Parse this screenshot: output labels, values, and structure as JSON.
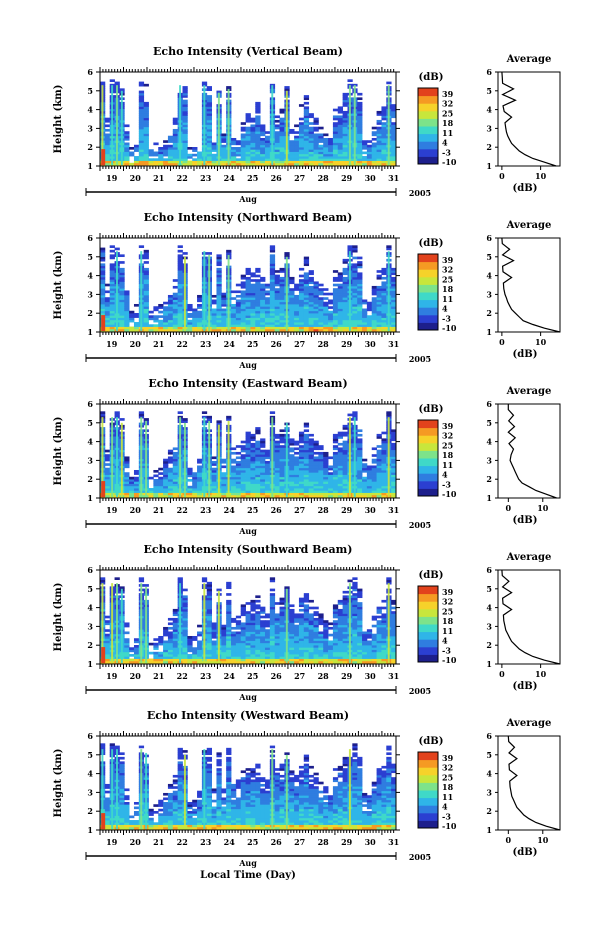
{
  "figure": {
    "xlabel": "Local Time (Day)",
    "month_label": "Aug",
    "year_label": "2005",
    "colorbar_unit": "(dB)",
    "colorbar_ticks": [
      "39",
      "32",
      "25",
      "18",
      "11",
      "4",
      "-3",
      "-10"
    ],
    "avg_title": "Average",
    "avg_xlabel": "(dB)",
    "avg_xticks": [
      "0",
      "10"
    ],
    "height_ticks": [
      "1",
      "2",
      "3",
      "4",
      "5",
      "6"
    ],
    "day_ticks": [
      "19",
      "20",
      "21",
      "22",
      "23",
      "24",
      "25",
      "26",
      "27",
      "28",
      "29",
      "30",
      "31"
    ],
    "colors": {
      "colormap": [
        "#1d1f8c",
        "#2b3fd1",
        "#2f7de0",
        "#2fb5e8",
        "#3fd9c8",
        "#7de38a",
        "#c8e63c",
        "#f6d22a",
        "#f59a23",
        "#e2421c"
      ],
      "axis": "#000000",
      "background": "#ffffff"
    }
  },
  "chart_data": [
    {
      "type": "heatmap",
      "title": "Echo Intensity (Vertical Beam)",
      "ylabel": "Height (km)",
      "xlim": [
        19,
        31.6
      ],
      "ylim": [
        1,
        6
      ],
      "clim": [
        -10,
        39
      ],
      "echo_top_km": [
        5.5,
        3.5,
        5.5,
        5.5,
        5.2,
        3.1,
        2.0,
        2.3,
        5.5,
        5.3,
        2.0,
        2.2,
        2.1,
        2.3,
        2.8,
        3.5,
        5.5,
        5.2,
        2.0,
        2.0,
        2.6,
        5.5,
        5.3,
        2.5,
        5.1,
        2.8,
        5.3,
        2.4,
        2.3,
        3.3,
        3.8,
        3.8,
        4.3,
        3.2,
        2.8,
        5.5,
        3.7,
        4.0,
        5.2,
        3.2,
        3.2,
        4.2,
        5.0,
        3.8,
        3.5,
        3.0,
        2.8,
        2.6,
        4.0,
        4.1,
        4.8,
        5.5,
        5.5,
        5.0,
        2.3,
        2.3,
        3.0,
        3.9,
        4.2,
        5.5,
        4.2
      ],
      "average_profile": {
        "height_km": [
          1.0,
          1.2,
          1.4,
          1.6,
          1.8,
          2.0,
          2.2,
          2.4,
          2.6,
          2.8,
          3.0,
          3.3,
          3.6,
          3.9,
          4.2,
          4.5,
          4.8,
          5.1,
          5.4,
          5.7,
          6.0
        ],
        "value_db": [
          14,
          11,
          8,
          6,
          4.5,
          3.5,
          2.5,
          2.0,
          1.5,
          1.2,
          1.0,
          0.8,
          2.5,
          0.6,
          0.3,
          3.5,
          0.2,
          3.0,
          0.2,
          0.1,
          0.0
        ],
        "xlim": [
          -1,
          15
        ]
      }
    },
    {
      "type": "heatmap",
      "title": "Echo Intensity (Northward Beam)",
      "ylabel": "Height (km)",
      "xlim": [
        19,
        31.6
      ],
      "ylim": [
        1,
        6
      ],
      "clim": [
        -10,
        39
      ],
      "echo_top_km": [
        5.5,
        3.5,
        5.5,
        5.5,
        5.2,
        3.2,
        2.1,
        2.4,
        5.5,
        5.3,
        2.1,
        2.3,
        2.4,
        2.8,
        3.3,
        3.8,
        5.5,
        5.2,
        2.4,
        2.4,
        3.0,
        5.5,
        5.3,
        3.0,
        5.1,
        3.0,
        5.3,
        3.3,
        3.5,
        4.0,
        4.3,
        4.2,
        4.5,
        4.0,
        3.5,
        5.5,
        4.2,
        4.4,
        5.2,
        4.0,
        3.8,
        4.4,
        5.0,
        4.2,
        3.9,
        3.5,
        3.3,
        3.0,
        4.2,
        4.4,
        4.8,
        5.5,
        5.5,
        5.0,
        2.8,
        2.7,
        3.4,
        4.2,
        4.4,
        5.5,
        4.5
      ],
      "average_profile": {
        "height_km": [
          1.0,
          1.2,
          1.4,
          1.6,
          1.8,
          2.0,
          2.2,
          2.4,
          2.6,
          2.8,
          3.0,
          3.3,
          3.6,
          3.9,
          4.2,
          4.5,
          4.8,
          5.1,
          5.4,
          5.7,
          6.0
        ],
        "value_db": [
          15,
          11,
          8,
          5.5,
          4.5,
          3.5,
          2.5,
          2.0,
          1.5,
          1.2,
          0.8,
          0.5,
          0.4,
          2.5,
          0.3,
          0.2,
          3.0,
          0.2,
          2.0,
          0.1,
          0.0
        ],
        "xlim": [
          -1,
          15
        ]
      }
    },
    {
      "type": "heatmap",
      "title": "Echo Intensity (Eastward Beam)",
      "ylabel": "Height (km)",
      "xlim": [
        19,
        31.6
      ],
      "ylim": [
        1,
        6
      ],
      "clim": [
        -10,
        39
      ],
      "echo_top_km": [
        5.5,
        3.5,
        5.5,
        5.5,
        5.2,
        3.2,
        2.1,
        2.4,
        5.5,
        5.3,
        2.2,
        2.4,
        2.6,
        3.0,
        3.5,
        4.0,
        5.5,
        5.2,
        2.5,
        2.6,
        3.2,
        5.5,
        5.3,
        3.2,
        5.1,
        3.2,
        5.3,
        3.6,
        3.7,
        4.2,
        4.5,
        4.4,
        4.7,
        4.1,
        3.7,
        5.5,
        4.3,
        4.6,
        5.2,
        4.2,
        4.0,
        4.6,
        5.0,
        4.4,
        4.0,
        3.7,
        3.4,
        3.2,
        4.3,
        4.5,
        4.8,
        5.5,
        5.5,
        5.0,
        3.0,
        2.9,
        3.6,
        4.3,
        4.5,
        5.5,
        4.6
      ],
      "average_profile": {
        "height_km": [
          1.0,
          1.2,
          1.4,
          1.6,
          1.8,
          2.0,
          2.2,
          2.4,
          2.6,
          2.8,
          3.0,
          3.3,
          3.6,
          3.9,
          4.2,
          4.5,
          4.8,
          5.1,
          5.4,
          5.7,
          6.0
        ],
        "value_db": [
          14,
          11,
          8,
          6,
          4,
          3,
          2.5,
          2.0,
          1.5,
          1.0,
          0.5,
          0.8,
          1.5,
          0.2,
          2.0,
          0.0,
          1.8,
          0.1,
          1.5,
          0.0,
          0.0
        ],
        "xlim": [
          -3,
          15
        ]
      }
    },
    {
      "type": "heatmap",
      "title": "Echo Intensity (Southward Beam)",
      "ylabel": "Height (km)",
      "xlim": [
        19,
        31.6
      ],
      "ylim": [
        1,
        6
      ],
      "clim": [
        -10,
        39
      ],
      "echo_top_km": [
        5.5,
        3.5,
        5.5,
        5.5,
        5.2,
        3.2,
        2.1,
        2.4,
        5.5,
        5.3,
        2.1,
        2.3,
        2.5,
        2.9,
        3.4,
        3.9,
        5.5,
        5.2,
        2.4,
        2.5,
        3.1,
        5.5,
        5.3,
        3.1,
        5.1,
        3.1,
        5.3,
        3.5,
        3.6,
        4.1,
        4.4,
        4.3,
        4.6,
        4.0,
        3.6,
        5.5,
        4.3,
        4.5,
        5.2,
        4.1,
        3.9,
        4.5,
        5.0,
        4.3,
        4.0,
        3.6,
        3.3,
        3.1,
        4.2,
        4.4,
        4.8,
        5.5,
        5.5,
        5.0,
        2.9,
        2.8,
        3.5,
        4.2,
        4.4,
        5.5,
        4.5
      ],
      "average_profile": {
        "height_km": [
          1.0,
          1.2,
          1.4,
          1.6,
          1.8,
          2.0,
          2.2,
          2.4,
          2.6,
          2.8,
          3.0,
          3.3,
          3.6,
          3.9,
          4.2,
          4.5,
          4.8,
          5.1,
          5.4,
          5.7,
          6.0
        ],
        "value_db": [
          15,
          11,
          8,
          6,
          4.5,
          3.5,
          2.5,
          2.0,
          1.5,
          1.0,
          0.8,
          0.5,
          0.4,
          2.5,
          0.3,
          0.2,
          2.5,
          0.2,
          1.8,
          0.1,
          0.0
        ],
        "xlim": [
          -1,
          15
        ]
      }
    },
    {
      "type": "heatmap",
      "title": "Echo Intensity (Westward Beam)",
      "ylabel": "Height (km)",
      "xlim": [
        19,
        31.6
      ],
      "ylim": [
        1,
        6
      ],
      "clim": [
        -10,
        39
      ],
      "echo_top_km": [
        5.5,
        3.5,
        5.5,
        5.5,
        5.2,
        3.2,
        2.1,
        2.4,
        5.5,
        5.3,
        2.1,
        2.3,
        2.5,
        2.9,
        3.4,
        3.9,
        5.5,
        5.2,
        2.4,
        2.5,
        3.1,
        5.5,
        5.3,
        3.1,
        5.1,
        3.1,
        5.3,
        3.5,
        3.6,
        4.1,
        4.4,
        4.3,
        4.6,
        4.0,
        3.6,
        5.5,
        4.3,
        4.5,
        5.2,
        4.1,
        3.9,
        4.5,
        5.0,
        4.3,
        4.0,
        3.6,
        3.3,
        3.1,
        4.2,
        4.4,
        4.8,
        5.5,
        5.5,
        5.0,
        2.9,
        2.8,
        3.5,
        4.2,
        4.4,
        5.5,
        4.5
      ],
      "average_profile": {
        "height_km": [
          1.0,
          1.2,
          1.4,
          1.6,
          1.8,
          2.0,
          2.2,
          2.4,
          2.6,
          2.8,
          3.0,
          3.3,
          3.6,
          3.9,
          4.2,
          4.5,
          4.8,
          5.1,
          5.4,
          5.7,
          6.0
        ],
        "value_db": [
          15,
          11,
          8,
          6,
          4.5,
          3.5,
          2.5,
          2.0,
          1.5,
          1.0,
          0.8,
          0.5,
          0.4,
          2.5,
          0.3,
          0.2,
          2.5,
          0.2,
          1.8,
          0.1,
          0.0
        ],
        "xlim": [
          -3,
          15
        ]
      }
    }
  ]
}
